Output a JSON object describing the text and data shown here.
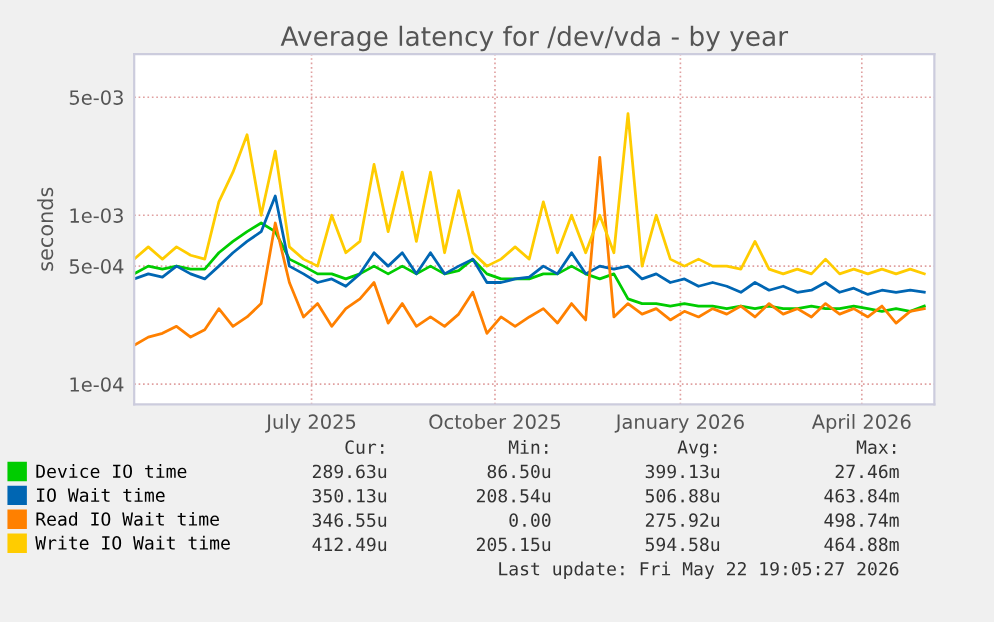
{
  "chart_data": {
    "type": "line",
    "title": "Average latency for /dev/vda - by year",
    "ylabel": "seconds",
    "x": [
      "2025-04-20",
      "2025-04-27",
      "2025-05-04",
      "2025-05-11",
      "2025-05-18",
      "2025-05-25",
      "2025-06-01",
      "2025-06-08",
      "2025-06-15",
      "2025-06-22",
      "2025-06-29",
      "2025-07-06",
      "2025-07-13",
      "2025-07-20",
      "2025-07-27",
      "2025-08-03",
      "2025-08-10",
      "2025-08-17",
      "2025-08-24",
      "2025-08-31",
      "2025-09-07",
      "2025-09-14",
      "2025-09-21",
      "2025-09-28",
      "2025-10-05",
      "2025-10-12",
      "2025-10-19",
      "2025-10-26",
      "2025-11-02",
      "2025-11-09",
      "2025-11-16",
      "2025-11-23",
      "2025-11-30",
      "2025-12-07",
      "2025-12-14",
      "2025-12-21",
      "2025-12-28",
      "2026-01-04",
      "2026-01-11",
      "2026-01-18",
      "2026-01-25",
      "2026-02-01",
      "2026-02-08",
      "2026-02-15",
      "2026-02-22",
      "2026-03-01",
      "2026-03-08",
      "2026-03-15",
      "2026-03-22",
      "2026-03-29",
      "2026-04-05",
      "2026-04-12",
      "2026-04-19",
      "2026-04-26",
      "2026-05-03",
      "2026-05-10",
      "2026-05-17"
    ],
    "series": [
      {
        "name": "Device IO time",
        "color": "#00cc00",
        "values": [
          0.00045,
          0.0005,
          0.00048,
          0.0005,
          0.00048,
          0.00048,
          0.0006,
          0.0007,
          0.0008,
          0.0009,
          0.0008,
          0.00055,
          0.0005,
          0.00045,
          0.00045,
          0.00042,
          0.00045,
          0.0005,
          0.00045,
          0.0005,
          0.00045,
          0.0005,
          0.00045,
          0.00047,
          0.00055,
          0.00045,
          0.00042,
          0.00042,
          0.00042,
          0.00045,
          0.00045,
          0.0005,
          0.00045,
          0.00042,
          0.00045,
          0.00032,
          0.0003,
          0.0003,
          0.00029,
          0.0003,
          0.00029,
          0.00029,
          0.00028,
          0.00029,
          0.00028,
          0.00029,
          0.00028,
          0.00028,
          0.00029,
          0.00028,
          0.00028,
          0.00029,
          0.00028,
          0.00027,
          0.00028,
          0.00027,
          0.00029
        ]
      },
      {
        "name": "IO Wait time",
        "color": "#0066b3",
        "values": [
          0.00042,
          0.00045,
          0.00043,
          0.0005,
          0.00045,
          0.00042,
          0.0005,
          0.0006,
          0.0007,
          0.0008,
          0.0013,
          0.0005,
          0.00045,
          0.0004,
          0.00042,
          0.00038,
          0.00045,
          0.0006,
          0.0005,
          0.0006,
          0.00045,
          0.0006,
          0.00045,
          0.0005,
          0.00055,
          0.0004,
          0.0004,
          0.00042,
          0.00043,
          0.0005,
          0.00045,
          0.0006,
          0.00045,
          0.0005,
          0.00048,
          0.0005,
          0.00042,
          0.00045,
          0.0004,
          0.00042,
          0.00038,
          0.0004,
          0.00038,
          0.00035,
          0.0004,
          0.00036,
          0.00038,
          0.00035,
          0.00036,
          0.0004,
          0.00035,
          0.00037,
          0.00034,
          0.00036,
          0.00035,
          0.00036,
          0.00035
        ]
      },
      {
        "name": "Read IO Wait time",
        "color": "#ff8000",
        "values": [
          0.00017,
          0.00019,
          0.0002,
          0.00022,
          0.00019,
          0.00021,
          0.00028,
          0.00022,
          0.00025,
          0.0003,
          0.0009,
          0.0004,
          0.00025,
          0.0003,
          0.00022,
          0.00028,
          0.00032,
          0.0004,
          0.00023,
          0.0003,
          0.00022,
          0.00025,
          0.00022,
          0.00026,
          0.00035,
          0.0002,
          0.00025,
          0.00022,
          0.00025,
          0.00028,
          0.00023,
          0.0003,
          0.00024,
          0.0022,
          0.00025,
          0.0003,
          0.00026,
          0.00028,
          0.00024,
          0.00027,
          0.00025,
          0.00028,
          0.00026,
          0.00029,
          0.00025,
          0.0003,
          0.00026,
          0.00028,
          0.00025,
          0.0003,
          0.00026,
          0.00028,
          0.00025,
          0.00029,
          0.00023,
          0.00027,
          0.00028
        ]
      },
      {
        "name": "Write IO Wait time",
        "color": "#ffcc00",
        "values": [
          0.00055,
          0.00065,
          0.00055,
          0.00065,
          0.00058,
          0.00055,
          0.0012,
          0.0018,
          0.003,
          0.001,
          0.0024,
          0.00065,
          0.00055,
          0.0005,
          0.001,
          0.0006,
          0.0007,
          0.002,
          0.0008,
          0.0018,
          0.0007,
          0.0018,
          0.0006,
          0.0014,
          0.0006,
          0.0005,
          0.00055,
          0.00065,
          0.00055,
          0.0012,
          0.0006,
          0.001,
          0.0006,
          0.001,
          0.0006,
          0.004,
          0.0005,
          0.001,
          0.00055,
          0.0005,
          0.00055,
          0.0005,
          0.0005,
          0.00048,
          0.0007,
          0.00048,
          0.00045,
          0.00048,
          0.00045,
          0.00055,
          0.00045,
          0.00048,
          0.00045,
          0.00048,
          0.00045,
          0.00048,
          0.00045
        ]
      }
    ],
    "log": true,
    "ylim": [
      7.6e-05,
      0.009
    ],
    "yticks": [
      {
        "value": 0.0001,
        "label": "1e-04"
      },
      {
        "value": 0.0005,
        "label": "5e-04"
      },
      {
        "value": 0.001,
        "label": "1e-03"
      },
      {
        "value": 0.005,
        "label": "5e-03"
      }
    ],
    "xlim": [
      "2025-04-20",
      "2026-05-22"
    ],
    "xticks": [
      {
        "value": "2025-07-17",
        "label": "July 2025"
      },
      {
        "value": "2025-10-16",
        "label": "October 2025"
      },
      {
        "value": "2026-01-16",
        "label": "January 2026"
      },
      {
        "value": "2026-04-16",
        "label": "April 2026"
      }
    ],
    "grid": true,
    "legend": "bottom",
    "line_style": "solid",
    "marker": "none",
    "annotations": [
      "Cur:",
      "Min:",
      "Avg:",
      "Max:",
      "289.63u",
      "86.50u",
      "399.13u",
      "27.46m",
      "350.13u",
      "208.54u",
      "506.88u",
      "463.84m",
      "346.55u",
      "0.00",
      "275.92u",
      "498.74m",
      "412.49u",
      "205.15u",
      "594.58u",
      "464.88m",
      "Last update: Fri May 22 19:05:27 2026"
    ]
  }
}
